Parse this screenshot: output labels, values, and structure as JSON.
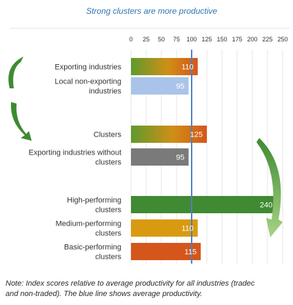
{
  "chart_data": {
    "type": "bar",
    "orientation": "horizontal",
    "title": "Strong clusters are more productive",
    "xlim": [
      0,
      250
    ],
    "x_ticks": [
      0,
      25,
      50,
      75,
      100,
      125,
      150,
      175,
      200,
      225,
      250
    ],
    "x_tick_labels": [
      "0",
      "25",
      "50",
      "75",
      "100",
      "125",
      "150",
      "175",
      "200",
      "225",
      "250"
    ],
    "grid": "vertical",
    "reference_line": {
      "value": 100,
      "color": "#4f7fc0"
    },
    "bars": [
      {
        "label": [
          "Exporting industries"
        ],
        "value": 110,
        "value_label": "110",
        "color": "gradient-orange"
      },
      {
        "label": [
          "Local non-exporting",
          "industries"
        ],
        "value": 95,
        "value_label": "95",
        "color": "#a9c4e8"
      },
      {
        "label": [
          "Clusters"
        ],
        "value": 125,
        "value_label": "125",
        "color": "gradient-orange"
      },
      {
        "label": [
          "Exporting industries without",
          "clusters"
        ],
        "value": 95,
        "value_label": "95",
        "color": "#7a7a7a"
      },
      {
        "label": [
          "High-performing",
          "clusters"
        ],
        "value": 240,
        "value_label": "240",
        "color": "#3f8a32"
      },
      {
        "label": [
          "Medium-performing",
          "clusters"
        ],
        "value": 110,
        "value_label": "110",
        "color": "#d99a12"
      },
      {
        "label": [
          "Basic-performing",
          "clusters"
        ],
        "value": 115,
        "value_label": "115",
        "color": "#d4561a"
      }
    ],
    "colors": {
      "left_arrow": "#3f8a32",
      "right_arrow": "#8fc46a"
    }
  },
  "note": {
    "line1": "Note: Index scores relative to average productivity for all industries (tradec",
    "line2": "and non-traded). The blue line shows average productivity."
  }
}
